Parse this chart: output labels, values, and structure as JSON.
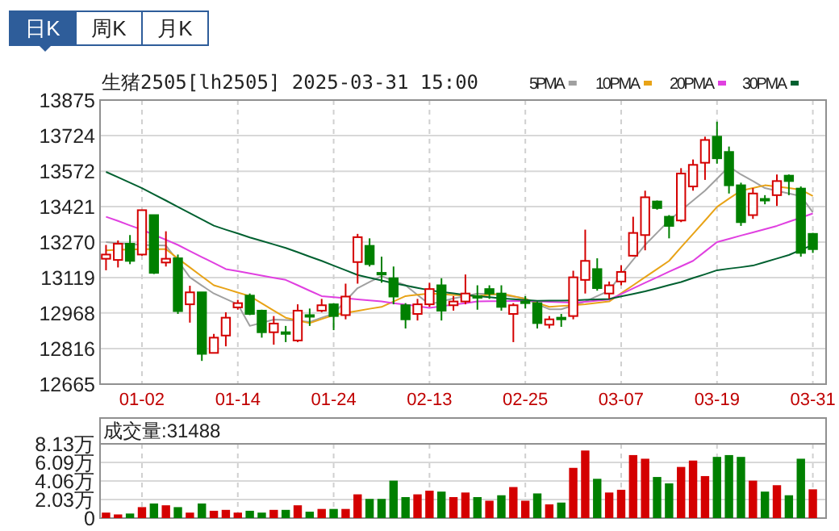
{
  "chart_data": [
    {
      "type": "candlestick",
      "title": "生猪2505[lh2505] 2025-03-31 15:00",
      "annotations": [
        "日K",
        "周K",
        "月K"
      ],
      "categories": [
        null,
        null,
        null,
        "01-02",
        null,
        null,
        null,
        null,
        null,
        null,
        null,
        "01-14",
        null,
        null,
        null,
        null,
        null,
        null,
        null,
        "01-24",
        null,
        null,
        null,
        null,
        null,
        null,
        null,
        "02-13",
        null,
        null,
        null,
        null,
        null,
        null,
        null,
        "02-25",
        null,
        null,
        null,
        null,
        null,
        null,
        null,
        "03-07",
        null,
        null,
        null,
        null,
        null,
        null,
        null,
        "03-19",
        null,
        null,
        null,
        null,
        null,
        null,
        null,
        "03-31"
      ],
      "ohlc": [
        [
          13199,
          13258,
          13150,
          13217
        ],
        [
          13194,
          13277,
          13162,
          13263
        ],
        [
          13263,
          13300,
          13176,
          13190
        ],
        [
          13217,
          13406,
          13212,
          13406
        ],
        [
          13385,
          13385,
          13134,
          13139
        ],
        [
          13183,
          13316,
          13166,
          13199
        ],
        [
          13201,
          13217,
          12964,
          12976
        ],
        [
          13005,
          13084,
          12927,
          13056
        ],
        [
          13056,
          13056,
          12764,
          12794
        ],
        [
          12798,
          12879,
          12798,
          12863
        ],
        [
          12872,
          12971,
          12826,
          12948
        ],
        [
          12992,
          13024,
          12982,
          13010
        ],
        [
          13042,
          13051,
          12959,
          12964
        ],
        [
          12978,
          12982,
          12863,
          12886
        ],
        [
          12886,
          12955,
          12833,
          12923
        ],
        [
          12886,
          12913,
          12844,
          12879
        ],
        [
          12851,
          13005,
          12844,
          12978
        ],
        [
          12959,
          12987,
          12913,
          12953
        ],
        [
          12978,
          13028,
          12971,
          13001
        ],
        [
          13005,
          13010,
          12895,
          12955
        ],
        [
          12959,
          13093,
          12941,
          13038
        ],
        [
          13185,
          13305,
          13093,
          13291
        ],
        [
          13254,
          13286,
          13166,
          13176
        ],
        [
          13139,
          13208,
          13097,
          13132
        ],
        [
          13116,
          13166,
          13005,
          13038
        ],
        [
          13001,
          13010,
          12902,
          12941
        ],
        [
          12964,
          13028,
          12936,
          13005
        ],
        [
          13005,
          13097,
          12994,
          13070
        ],
        [
          13086,
          13116,
          12936,
          12978
        ],
        [
          13001,
          13040,
          12978,
          13017
        ],
        [
          13017,
          13132,
          13005,
          13051
        ],
        [
          13040,
          13086,
          12982,
          13033
        ],
        [
          13070,
          13086,
          13028,
          13051
        ],
        [
          13051,
          13086,
          12978,
          12994
        ],
        [
          12964,
          13010,
          12844,
          13001
        ],
        [
          13017,
          13040,
          12987,
          13010
        ],
        [
          13010,
          13017,
          12902,
          12925
        ],
        [
          12918,
          12955,
          12902,
          12941
        ],
        [
          12948,
          12964,
          12909,
          12941
        ],
        [
          12955,
          13148,
          12941,
          13120
        ],
        [
          13109,
          13323,
          13051,
          13190
        ],
        [
          13155,
          13201,
          13063,
          13074
        ],
        [
          13051,
          13102,
          13028,
          13086
        ],
        [
          13102,
          13171,
          13086,
          13143
        ],
        [
          13212,
          13378,
          13208,
          13309
        ],
        [
          13300,
          13489,
          13235,
          13461
        ],
        [
          13443,
          13447,
          13408,
          13415
        ],
        [
          13378,
          13385,
          13286,
          13339
        ],
        [
          13362,
          13585,
          13355,
          13562
        ],
        [
          13507,
          13622,
          13489,
          13599
        ],
        [
          13608,
          13719,
          13535,
          13705
        ],
        [
          13719,
          13783,
          13604,
          13627
        ],
        [
          13654,
          13677,
          13477,
          13512
        ],
        [
          13512,
          13523,
          13339,
          13355
        ],
        [
          13385,
          13500,
          13369,
          13477
        ],
        [
          13454,
          13470,
          13431,
          13447
        ],
        [
          13470,
          13558,
          13424,
          13530
        ],
        [
          13553,
          13558,
          13470,
          13530
        ],
        [
          13498,
          13507,
          13208,
          13224
        ],
        [
          13305,
          13309,
          13224,
          13240
        ]
      ],
      "series": [
        {
          "name": "5PMA",
          "type": "line",
          "color": "#a0a0a0",
          "values": [
            13270,
            13265,
            13262,
            13258,
            13256,
            13255,
            13190,
            13120,
            13085,
            13051,
            13028,
            13005,
            12913,
            12926,
            12940,
            12938,
            12936,
            12930,
            12948,
            12965,
            13020,
            13074,
            13100,
            13125,
            13105,
            13086,
            13045,
            13005,
            13017,
            13030,
            13040,
            13051,
            13048,
            13045,
            13038,
            13030,
            13005,
            12984,
            12984,
            13000,
            13017,
            13040,
            13063,
            13132,
            13195,
            13258,
            13310,
            13362,
            13405,
            13447,
            13489,
            13540,
            13592,
            13558,
            13530,
            13500,
            13488,
            13477,
            13466,
            13397
          ]
        },
        {
          "name": "10PMA",
          "type": "line",
          "color": "#e8a317",
          "values": [
            13235,
            13237,
            13238,
            13240,
            13240,
            13240,
            13200,
            13162,
            13124,
            13086,
            13071,
            13055,
            13040,
            13009,
            12978,
            12948,
            12936,
            12925,
            12942,
            12959,
            12968,
            12977,
            12986,
            12994,
            13017,
            13040,
            13046,
            13051,
            13048,
            13045,
            13042,
            13040,
            13046,
            13051,
            13040,
            13028,
            13011,
            12994,
            12998,
            13001,
            13005,
            13011,
            13017,
            13052,
            13086,
            13121,
            13155,
            13190,
            13248,
            13305,
            13362,
            13420,
            13455,
            13489,
            13500,
            13512,
            13506,
            13500,
            13493,
            13466
          ]
        },
        {
          "name": "20PMA",
          "type": "line",
          "color": "#e040e0",
          "values": [
            13378,
            13360,
            13341,
            13323,
            13301,
            13280,
            13258,
            13232,
            13206,
            13181,
            13155,
            13146,
            13137,
            13127,
            13118,
            13109,
            13086,
            13063,
            13040,
            13035,
            13031,
            13026,
            13022,
            13017,
            13010,
            13004,
            12997,
            12990,
            12997,
            13004,
            13010,
            13017,
            13018,
            13018,
            13019,
            13020,
            13018,
            13016,
            13014,
            13012,
            13016,
            13021,
            13025,
            13049,
            13073,
            13097,
            13120,
            13144,
            13167,
            13190,
            13230,
            13270,
            13284,
            13298,
            13311,
            13325,
            13339,
            13357,
            13374,
            13392
          ]
        },
        {
          "name": "30PMA",
          "type": "line",
          "color": "#006030",
          "values": [
            13569,
            13546,
            13523,
            13500,
            13473,
            13447,
            13420,
            13393,
            13367,
            13340,
            13323,
            13307,
            13290,
            13275,
            13260,
            13245,
            13227,
            13208,
            13190,
            13170,
            13150,
            13130,
            13118,
            13107,
            13095,
            13085,
            13075,
            13065,
            13058,
            13052,
            13045,
            13040,
            13035,
            13030,
            13027,
            13023,
            13020,
            13021,
            13021,
            13022,
            13024,
            13026,
            13028,
            13039,
            13049,
            13060,
            13073,
            13087,
            13100,
            13117,
            13133,
            13150,
            13157,
            13163,
            13170,
            13185,
            13200,
            13215,
            13237,
            13258
          ]
        }
      ],
      "ylim": [
        12665,
        13875
      ],
      "yticks": [
        12665,
        12816,
        12968,
        13119,
        13270,
        13421,
        13572,
        13724,
        13875
      ],
      "grid": true,
      "legend": "top right"
    },
    {
      "type": "bar",
      "title": "成交量:31488",
      "categories": [
        null,
        null,
        null,
        null,
        null,
        null,
        null,
        null,
        null,
        null,
        null,
        null,
        null,
        null,
        null,
        null,
        null,
        null,
        null,
        null,
        null,
        null,
        null,
        null,
        null,
        null,
        null,
        null,
        null,
        null,
        null,
        null,
        null,
        null,
        null,
        null,
        null,
        null,
        null,
        null,
        null,
        null,
        null,
        null,
        null,
        null,
        null,
        null,
        null,
        null,
        null,
        null,
        null,
        null,
        null,
        null,
        null,
        null,
        null,
        null
      ],
      "values": [
        0.6,
        0.4,
        0.5,
        1.2,
        1.6,
        1.4,
        1.2,
        0.6,
        1.6,
        0.8,
        0.9,
        0.6,
        0.8,
        0.6,
        0.9,
        0.9,
        1.4,
        0.7,
        1.0,
        1.0,
        1.0,
        2.6,
        2.1,
        2.1,
        4.1,
        2.3,
        2.6,
        3.0,
        2.9,
        2.3,
        2.8,
        2.3,
        1.9,
        2.5,
        3.4,
        1.9,
        2.7,
        1.5,
        1.7,
        5.5,
        7.4,
        4.3,
        2.8,
        3.1,
        6.9,
        6.5,
        4.5,
        3.8,
        5.6,
        6.3,
        4.6,
        6.7,
        6.9,
        6.7,
        4.1,
        2.9,
        3.6,
        2.5,
        6.5,
        3.1488
      ],
      "colors": [
        "#d40000",
        "#d40000",
        "#008000",
        "#d40000",
        "#008000",
        "#d40000",
        "#008000",
        "#d40000",
        "#008000",
        "#d40000",
        "#d40000",
        "#d40000",
        "#008000",
        "#008000",
        "#d40000",
        "#008000",
        "#d40000",
        "#008000",
        "#d40000",
        "#008000",
        "#d40000",
        "#d40000",
        "#008000",
        "#008000",
        "#008000",
        "#008000",
        "#d40000",
        "#d40000",
        "#008000",
        "#d40000",
        "#d40000",
        "#008000",
        "#d40000",
        "#008000",
        "#d40000",
        "#d40000",
        "#008000",
        "#d40000",
        "#008000",
        "#d40000",
        "#d40000",
        "#008000",
        "#d40000",
        "#d40000",
        "#d40000",
        "#d40000",
        "#008000",
        "#008000",
        "#d40000",
        "#d40000",
        "#d40000",
        "#008000",
        "#008000",
        "#008000",
        "#d40000",
        "#008000",
        "#d40000",
        "#008000",
        "#008000",
        "#d40000"
      ],
      "ylim": [
        0,
        8.13
      ],
      "yticks": [
        0,
        {
          "value": 2.03,
          "label": "2.03万"
        },
        {
          "value": 4.06,
          "label": "4.06万"
        },
        {
          "value": 6.09,
          "label": "6.09万"
        },
        {
          "value": 8.13,
          "label": "8.13万"
        }
      ],
      "grid": true,
      "tick_labels": "y"
    }
  ]
}
